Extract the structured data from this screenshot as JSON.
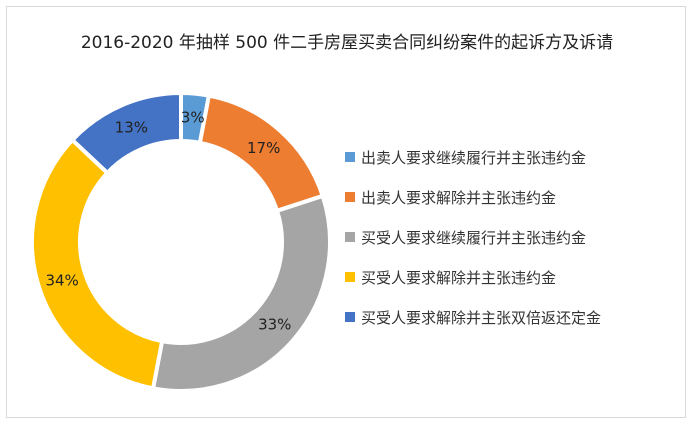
{
  "chart_data": {
    "type": "pie",
    "donut": true,
    "title": "2016-2020 年抽样 500 件二手房屋买卖合同纠纷案件的起诉方及诉请",
    "legend_position": "right",
    "categories": [
      "出卖人要求继续履行并主张违约金",
      "出卖人要求解除并主张违约金",
      "买受人要求继续履行并主张违约金",
      "买受人要求解除并主张违约金",
      "买受人要求解除并主张双倍返还定金"
    ],
    "values": [
      3,
      17,
      33,
      34,
      13
    ],
    "labels": [
      "3%",
      "17%",
      "33%",
      "34%",
      "13%"
    ],
    "colors": [
      "#5b9bd5",
      "#ed7d31",
      "#a5a5a5",
      "#ffc000",
      "#4472c4"
    ]
  }
}
